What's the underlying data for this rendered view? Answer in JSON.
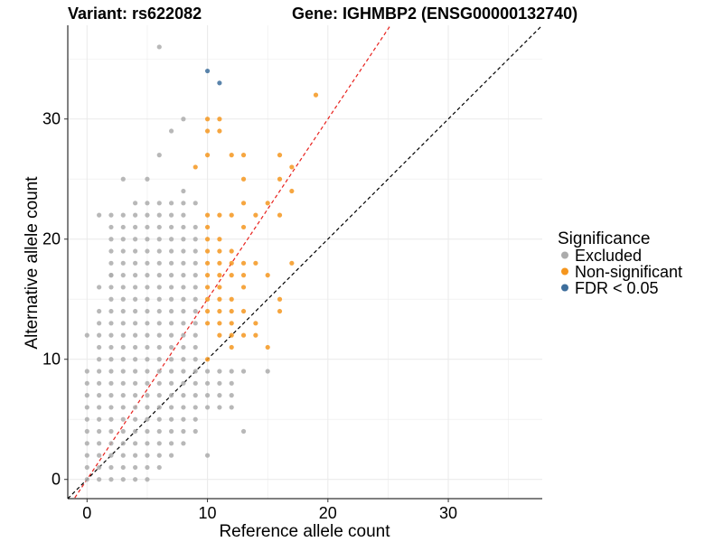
{
  "title": {
    "variant": "Variant: rs622082",
    "gene": "Gene: IGHMBP2 (ENSG00000132740)"
  },
  "colors": {
    "Excluded": "#ababab",
    "Non-significant": "#f5961e",
    "FDR < 0.05": "#3d6e9c",
    "ref_line": "#e8211d",
    "identity_line": "#000000",
    "grid": "#ebebeb"
  },
  "chart_data": {
    "type": "scatter",
    "xlabel": "Reference allele count",
    "ylabel": "Alternative allele count",
    "xlim": [
      -1.6,
      37.8
    ],
    "ylim": [
      -1.6,
      37.8
    ],
    "x_ticks": [
      0,
      10,
      20,
      30
    ],
    "y_ticks": [
      0,
      10,
      20,
      30
    ],
    "grid": true,
    "legend": {
      "title": "Significance",
      "position": "right",
      "entries": [
        "Excluded",
        "Non-significant",
        "FDR < 0.05"
      ]
    },
    "lines": [
      {
        "style": "dashed",
        "color": "red",
        "slope": 1.5,
        "intercept": 0
      },
      {
        "style": "dashed",
        "color": "black",
        "slope": 1,
        "intercept": 0
      }
    ],
    "series": [
      {
        "name": "Excluded",
        "points": [
          [
            6,
            36
          ],
          [
            8,
            30
          ],
          [
            7,
            29
          ],
          [
            6,
            27
          ],
          [
            3,
            25
          ],
          [
            5,
            25
          ],
          [
            1,
            22
          ],
          [
            2,
            22
          ],
          [
            3,
            22
          ],
          [
            8,
            24
          ],
          [
            9,
            23
          ],
          [
            8,
            22
          ],
          [
            1,
            16
          ],
          [
            2,
            17
          ],
          [
            0,
            12
          ],
          [
            13,
            4
          ],
          [
            10,
            2
          ],
          [
            0,
            0
          ],
          [
            1,
            0
          ],
          [
            2,
            0
          ],
          [
            3,
            0
          ],
          [
            4,
            0
          ],
          [
            5,
            0
          ],
          [
            0,
            1
          ],
          [
            1,
            1
          ],
          [
            2,
            1
          ],
          [
            3,
            1
          ],
          [
            4,
            1
          ],
          [
            5,
            1
          ],
          [
            6,
            1
          ],
          [
            0,
            2
          ],
          [
            1,
            2
          ],
          [
            2,
            2
          ],
          [
            3,
            2
          ],
          [
            4,
            2
          ],
          [
            5,
            2
          ],
          [
            6,
            2
          ],
          [
            7,
            2
          ],
          [
            0,
            3
          ],
          [
            1,
            3
          ],
          [
            2,
            3
          ],
          [
            3,
            3
          ],
          [
            4,
            3
          ],
          [
            5,
            3
          ],
          [
            6,
            3
          ],
          [
            7,
            3
          ],
          [
            8,
            3
          ],
          [
            0,
            4
          ],
          [
            1,
            4
          ],
          [
            2,
            4
          ],
          [
            3,
            4
          ],
          [
            4,
            4
          ],
          [
            5,
            4
          ],
          [
            6,
            4
          ],
          [
            7,
            4
          ],
          [
            8,
            4
          ],
          [
            9,
            4
          ],
          [
            0,
            5
          ],
          [
            1,
            5
          ],
          [
            2,
            5
          ],
          [
            3,
            5
          ],
          [
            4,
            5
          ],
          [
            5,
            5
          ],
          [
            6,
            5
          ],
          [
            7,
            5
          ],
          [
            8,
            5
          ],
          [
            9,
            5
          ],
          [
            0,
            6
          ],
          [
            1,
            6
          ],
          [
            2,
            6
          ],
          [
            3,
            6
          ],
          [
            4,
            6
          ],
          [
            5,
            6
          ],
          [
            6,
            6
          ],
          [
            7,
            6
          ],
          [
            8,
            6
          ],
          [
            9,
            6
          ],
          [
            10,
            6
          ],
          [
            11,
            6
          ],
          [
            12,
            6
          ],
          [
            0,
            7
          ],
          [
            1,
            7
          ],
          [
            2,
            7
          ],
          [
            3,
            7
          ],
          [
            4,
            7
          ],
          [
            5,
            7
          ],
          [
            6,
            7
          ],
          [
            7,
            7
          ],
          [
            8,
            7
          ],
          [
            9,
            7
          ],
          [
            10,
            7
          ],
          [
            11,
            7
          ],
          [
            12,
            7
          ],
          [
            0,
            8
          ],
          [
            1,
            8
          ],
          [
            2,
            8
          ],
          [
            3,
            8
          ],
          [
            4,
            8
          ],
          [
            5,
            8
          ],
          [
            6,
            8
          ],
          [
            7,
            8
          ],
          [
            8,
            8
          ],
          [
            9,
            8
          ],
          [
            10,
            8
          ],
          [
            11,
            8
          ],
          [
            12,
            8
          ],
          [
            0,
            9
          ],
          [
            1,
            9
          ],
          [
            2,
            9
          ],
          [
            3,
            9
          ],
          [
            4,
            9
          ],
          [
            5,
            9
          ],
          [
            6,
            9
          ],
          [
            7,
            9
          ],
          [
            8,
            9
          ],
          [
            9,
            9
          ],
          [
            10,
            9
          ],
          [
            11,
            9
          ],
          [
            12,
            9
          ],
          [
            13,
            9
          ],
          [
            15,
            9
          ],
          [
            1,
            10
          ],
          [
            2,
            10
          ],
          [
            3,
            10
          ],
          [
            4,
            10
          ],
          [
            5,
            10
          ],
          [
            6,
            10
          ],
          [
            7,
            10
          ],
          [
            8,
            10
          ],
          [
            9,
            10
          ],
          [
            1,
            11
          ],
          [
            2,
            11
          ],
          [
            3,
            11
          ],
          [
            4,
            11
          ],
          [
            5,
            11
          ],
          [
            6,
            11
          ],
          [
            7,
            11
          ],
          [
            8,
            11
          ],
          [
            9,
            11
          ],
          [
            1,
            12
          ],
          [
            2,
            12
          ],
          [
            3,
            12
          ],
          [
            4,
            12
          ],
          [
            5,
            12
          ],
          [
            6,
            12
          ],
          [
            7,
            12
          ],
          [
            8,
            12
          ],
          [
            9,
            12
          ],
          [
            1,
            13
          ],
          [
            2,
            13
          ],
          [
            3,
            13
          ],
          [
            4,
            13
          ],
          [
            5,
            13
          ],
          [
            6,
            13
          ],
          [
            7,
            13
          ],
          [
            8,
            13
          ],
          [
            9,
            13
          ],
          [
            1,
            14
          ],
          [
            2,
            14
          ],
          [
            3,
            14
          ],
          [
            4,
            14
          ],
          [
            5,
            14
          ],
          [
            6,
            14
          ],
          [
            7,
            14
          ],
          [
            8,
            14
          ],
          [
            9,
            14
          ],
          [
            2,
            15
          ],
          [
            3,
            15
          ],
          [
            4,
            15
          ],
          [
            5,
            15
          ],
          [
            6,
            15
          ],
          [
            7,
            15
          ],
          [
            8,
            15
          ],
          [
            9,
            15
          ],
          [
            2,
            16
          ],
          [
            3,
            16
          ],
          [
            4,
            16
          ],
          [
            5,
            16
          ],
          [
            6,
            16
          ],
          [
            7,
            16
          ],
          [
            8,
            16
          ],
          [
            9,
            16
          ],
          [
            2,
            17
          ],
          [
            3,
            17
          ],
          [
            4,
            17
          ],
          [
            5,
            17
          ],
          [
            6,
            17
          ],
          [
            7,
            17
          ],
          [
            8,
            17
          ],
          [
            9,
            17
          ],
          [
            2,
            18
          ],
          [
            3,
            18
          ],
          [
            4,
            18
          ],
          [
            5,
            18
          ],
          [
            6,
            18
          ],
          [
            7,
            18
          ],
          [
            8,
            18
          ],
          [
            9,
            18
          ],
          [
            2,
            19
          ],
          [
            3,
            19
          ],
          [
            4,
            19
          ],
          [
            5,
            19
          ],
          [
            6,
            19
          ],
          [
            7,
            19
          ],
          [
            8,
            19
          ],
          [
            9,
            19
          ],
          [
            2,
            20
          ],
          [
            3,
            20
          ],
          [
            4,
            20
          ],
          [
            5,
            20
          ],
          [
            6,
            20
          ],
          [
            7,
            20
          ],
          [
            8,
            20
          ],
          [
            9,
            20
          ],
          [
            2,
            21
          ],
          [
            3,
            21
          ],
          [
            4,
            21
          ],
          [
            5,
            21
          ],
          [
            6,
            21
          ],
          [
            7,
            21
          ],
          [
            8,
            21
          ],
          [
            9,
            21
          ],
          [
            4,
            22
          ],
          [
            5,
            22
          ],
          [
            6,
            22
          ],
          [
            7,
            22
          ],
          [
            4,
            23
          ],
          [
            5,
            23
          ],
          [
            6,
            23
          ],
          [
            7,
            23
          ],
          [
            8,
            23
          ]
        ]
      },
      {
        "name": "Non-significant",
        "points": [
          [
            10,
            30
          ],
          [
            11,
            30
          ],
          [
            19,
            32
          ],
          [
            10,
            29
          ],
          [
            11,
            29
          ],
          [
            10,
            27
          ],
          [
            12,
            27
          ],
          [
            13,
            27
          ],
          [
            16,
            27
          ],
          [
            9,
            26
          ],
          [
            17,
            26
          ],
          [
            13,
            25
          ],
          [
            16,
            25
          ],
          [
            17,
            24
          ],
          [
            15,
            23
          ],
          [
            13,
            23
          ],
          [
            14,
            22
          ],
          [
            16,
            22
          ],
          [
            10,
            22
          ],
          [
            11,
            22
          ],
          [
            12,
            22
          ],
          [
            10,
            21
          ],
          [
            13,
            21
          ],
          [
            10,
            20
          ],
          [
            11,
            20
          ],
          [
            10,
            19
          ],
          [
            11,
            19
          ],
          [
            12,
            19
          ],
          [
            10,
            18
          ],
          [
            11,
            18
          ],
          [
            12,
            18
          ],
          [
            13,
            18
          ],
          [
            14,
            18
          ],
          [
            17,
            18
          ],
          [
            10,
            17
          ],
          [
            11,
            17
          ],
          [
            12,
            17
          ],
          [
            13,
            17
          ],
          [
            15,
            17
          ],
          [
            10,
            16
          ],
          [
            11,
            16
          ],
          [
            13,
            16
          ],
          [
            10,
            15
          ],
          [
            11,
            15
          ],
          [
            12,
            15
          ],
          [
            16,
            15
          ],
          [
            10,
            14
          ],
          [
            11,
            14
          ],
          [
            12,
            14
          ],
          [
            13,
            14
          ],
          [
            16,
            14
          ],
          [
            10,
            13
          ],
          [
            11,
            13
          ],
          [
            12,
            13
          ],
          [
            14,
            13
          ],
          [
            11,
            12
          ],
          [
            12,
            12
          ],
          [
            13,
            12
          ],
          [
            14,
            12
          ],
          [
            15,
            11
          ],
          [
            12,
            11
          ],
          [
            10,
            10
          ]
        ]
      },
      {
        "name": "FDR < 0.05",
        "points": [
          [
            10,
            34
          ],
          [
            11,
            33
          ]
        ]
      }
    ]
  }
}
